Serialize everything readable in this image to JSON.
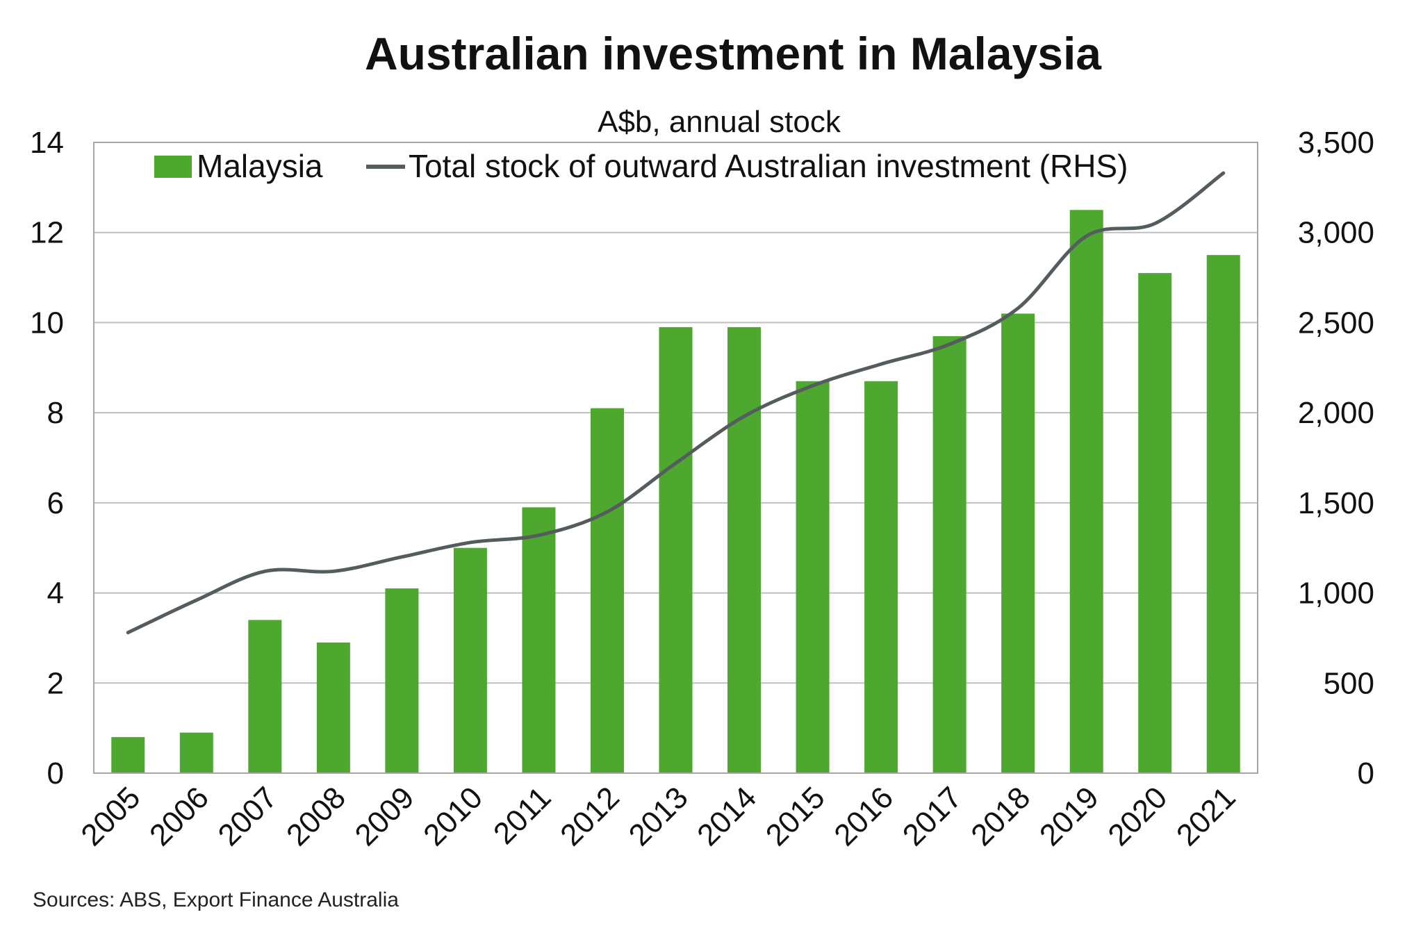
{
  "chart_data": {
    "type": "bar",
    "title": "Australian investment in Malaysia",
    "subtitle": "A$b, annual stock",
    "categories": [
      "2005",
      "2006",
      "2007",
      "2008",
      "2009",
      "2010",
      "2011",
      "2012",
      "2013",
      "2014",
      "2015",
      "2016",
      "2017",
      "2018",
      "2019",
      "2020",
      "2021"
    ],
    "series": [
      {
        "name": "Malaysia",
        "type": "bar",
        "axis": "left",
        "color": "#4ea72e",
        "values": [
          0.8,
          0.9,
          3.4,
          2.9,
          4.1,
          5.0,
          5.9,
          8.1,
          9.9,
          9.9,
          8.7,
          8.7,
          9.7,
          10.2,
          12.5,
          11.1,
          11.5
        ]
      },
      {
        "name": "Total stock of outward Australian investment (RHS)",
        "type": "line",
        "axis": "right",
        "color": "#555c60",
        "values": [
          780,
          960,
          1120,
          1120,
          1200,
          1280,
          1320,
          1450,
          1720,
          1980,
          2150,
          2270,
          2380,
          2580,
          2980,
          3050,
          3330
        ]
      }
    ],
    "y_left": {
      "min": 0,
      "max": 14,
      "step": 2,
      "ticks": [
        "0",
        "2",
        "4",
        "6",
        "8",
        "10",
        "12",
        "14"
      ]
    },
    "y_right": {
      "min": 0,
      "max": 3500,
      "step": 500,
      "ticks": [
        "0",
        "500",
        "1,000",
        "1,500",
        "2,000",
        "2,500",
        "3,000",
        "3,500"
      ]
    },
    "grid": true,
    "legend_position": "top",
    "source": "Sources: ABS, Export Finance Australia"
  }
}
